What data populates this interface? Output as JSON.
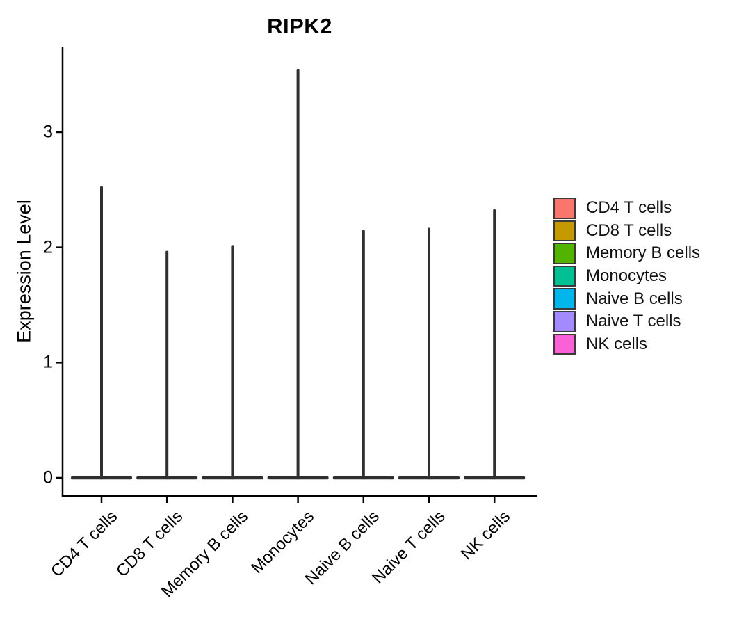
{
  "title": "RIPK2",
  "y_axis": {
    "label": "Expression Level",
    "tick_labels": [
      "0",
      "1",
      "2",
      "3"
    ]
  },
  "x_axis": {
    "categories": [
      "CD4 T cells",
      "CD8 T cells",
      "Memory B cells",
      "Monocytes",
      "Naive B cells",
      "Naive T cells",
      "NK cells"
    ]
  },
  "legend": {
    "items": [
      {
        "label": "CD4 T cells",
        "color": "#F8766D"
      },
      {
        "label": "CD8 T cells",
        "color": "#C49A00"
      },
      {
        "label": "Memory B cells",
        "color": "#53B400"
      },
      {
        "label": "Monocytes",
        "color": "#00C094"
      },
      {
        "label": "Naive B cells",
        "color": "#00B6EB"
      },
      {
        "label": "Naive T cells",
        "color": "#A58AFF"
      },
      {
        "label": "NK cells",
        "color": "#FB61D7"
      }
    ],
    "swatch_border_color": "#3A3A3A"
  },
  "chart_data": {
    "type": "violin",
    "title": "RIPK2",
    "xlabel": "",
    "ylabel": "Expression Level",
    "ylim": [
      0,
      3.74
    ],
    "y_ticks": [
      0,
      1,
      2,
      3
    ],
    "grid": false,
    "legend_position": "right",
    "categories": [
      "CD4 T cells",
      "CD8 T cells",
      "Memory B cells",
      "Monocytes",
      "Naive B cells",
      "Naive T cells",
      "NK cells"
    ],
    "violins": [
      {
        "category": "CD4 T cells",
        "color": "#F8766D",
        "min_expression": 0,
        "max_expression": 2.53,
        "bulk_at": 0
      },
      {
        "category": "CD8 T cells",
        "color": "#C49A00",
        "min_expression": 0,
        "max_expression": 1.97,
        "bulk_at": 0
      },
      {
        "category": "Memory B cells",
        "color": "#53B400",
        "min_expression": 0,
        "max_expression": 2.02,
        "bulk_at": 0
      },
      {
        "category": "Monocytes",
        "color": "#00C094",
        "min_expression": 0,
        "max_expression": 3.55,
        "bulk_at": 0
      },
      {
        "category": "Naive B cells",
        "color": "#00B6EB",
        "min_expression": 0,
        "max_expression": 2.15,
        "bulk_at": 0
      },
      {
        "category": "Naive T cells",
        "color": "#A58AFF",
        "min_expression": 0,
        "max_expression": 2.17,
        "bulk_at": 0
      },
      {
        "category": "NK cells",
        "color": "#FB61D7",
        "min_expression": 0,
        "max_expression": 2.33,
        "bulk_at": 0
      }
    ],
    "outline_color": "#2F2F2F",
    "axis_color": "#000000"
  }
}
